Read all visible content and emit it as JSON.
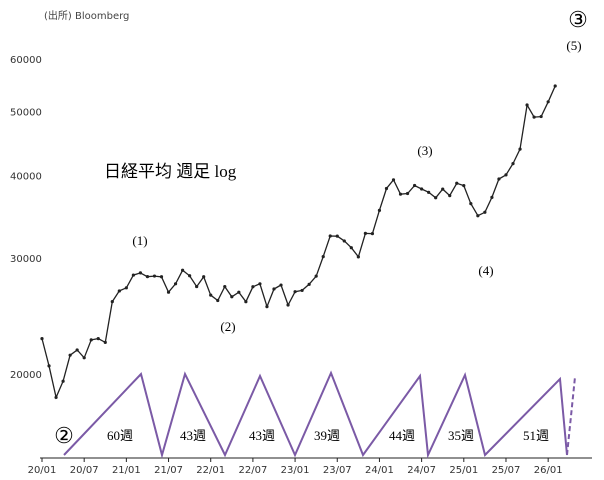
{
  "chart_data": {
    "type": "line",
    "source": "(出所) Bloomberg",
    "title": "日経平均 週足 log",
    "log_scale": true,
    "x": [
      "20/01",
      "20/02",
      "20/03",
      "20/04",
      "20/05",
      "20/06",
      "20/07",
      "20/08",
      "20/09",
      "20/10",
      "20/11",
      "20/12",
      "21/01",
      "21/02",
      "21/03",
      "21/04",
      "21/05",
      "21/06",
      "21/07",
      "21/08",
      "21/09",
      "21/10",
      "21/11",
      "21/12",
      "22/01",
      "22/02",
      "22/03",
      "22/04",
      "22/05",
      "22/06",
      "22/07",
      "22/08",
      "22/09",
      "22/10",
      "22/11",
      "22/12",
      "23/01",
      "23/02",
      "23/03",
      "23/04",
      "23/05",
      "23/06",
      "23/07",
      "23/08",
      "23/09",
      "23/10",
      "23/11",
      "23/12",
      "24/01",
      "24/02",
      "24/03",
      "24/04",
      "24/05",
      "24/06",
      "24/07",
      "24/08",
      "24/09",
      "24/10",
      "24/11",
      "24/12",
      "25/01",
      "25/02",
      "25/03",
      "25/04",
      "25/05",
      "25/06",
      "25/07",
      "25/08",
      "25/09",
      "25/10",
      "25/11",
      "25/12",
      "26/01",
      "26/02"
    ],
    "series": [
      {
        "name": "日経平均",
        "color": "#222222",
        "values": [
          23200,
          21100,
          18900,
          20000,
          21900,
          22300,
          21700,
          23100,
          23200,
          22900,
          26400,
          27400,
          27700,
          28960,
          29180,
          28800,
          28860,
          28790,
          27280,
          28090,
          29450,
          28890,
          27820,
          28790,
          27000,
          26500,
          27820,
          26850,
          27280,
          26390,
          27800,
          28090,
          25940,
          27590,
          27970,
          26090,
          27330,
          27450,
          28040,
          28850,
          30890,
          33190,
          33170,
          32620,
          31860,
          30860,
          33490,
          33460,
          36290,
          39170,
          40370,
          38400,
          38490,
          39580,
          39100,
          38650,
          37920,
          39080,
          38210,
          39890,
          39570,
          37160,
          35620,
          36050,
          37970,
          40490,
          41070,
          42720,
          44930,
          52410,
          50250,
          50340,
          53000,
          56000
        ]
      }
    ],
    "ylim": [
      15300,
      73000
    ],
    "yticks": [
      20000,
      30000,
      40000,
      50000,
      60000
    ],
    "xticks": [
      "20/01",
      "20/07",
      "21/01",
      "21/07",
      "22/01",
      "22/07",
      "23/01",
      "23/07",
      "24/01",
      "24/07",
      "25/01",
      "25/07",
      "26/01"
    ],
    "cycle_color": "#7b5aa6",
    "wave_labels": [
      "(1)",
      "(2)",
      "(3)",
      "(4)",
      "(5)",
      "②",
      "③"
    ],
    "cycle_labels": [
      "60週",
      "43週",
      "43週",
      "39週",
      "44週",
      "35週",
      "51週"
    ]
  }
}
